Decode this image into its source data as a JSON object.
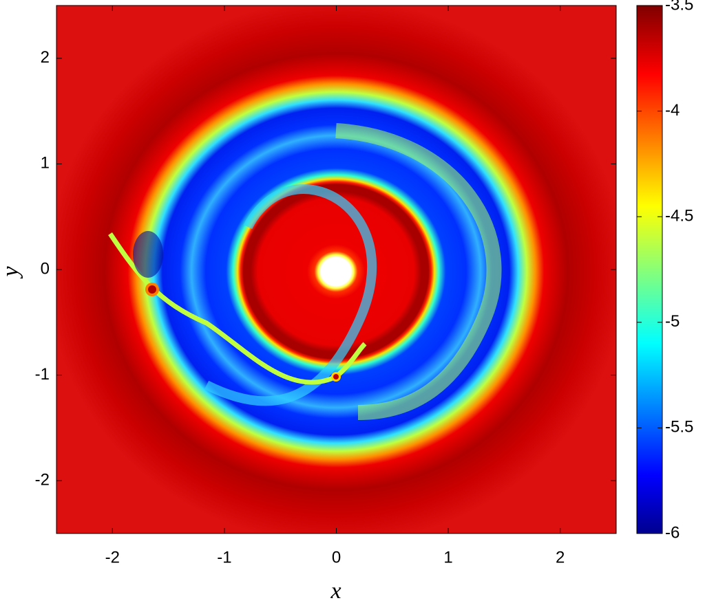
{
  "chart_data": {
    "type": "heatmap",
    "xlabel": "x",
    "ylabel": "y",
    "xlim": [
      -2.5,
      2.5
    ],
    "ylim": [
      -2.5,
      2.5
    ],
    "xticks": [
      -2,
      -1,
      0,
      1,
      2
    ],
    "yticks": [
      -2,
      -1,
      0,
      1,
      2
    ],
    "colorbar": {
      "lim": [
        -6,
        -3.5
      ],
      "ticks": [
        -6,
        -5.5,
        -5,
        -4.5,
        -4,
        -3.5
      ],
      "colormap": "jet"
    }
  }
}
